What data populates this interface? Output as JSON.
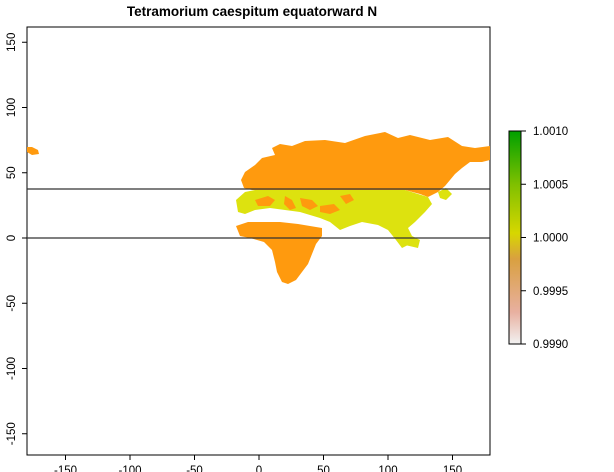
{
  "title": "Tetramorium caespitum equatorward N",
  "axes": {
    "x_ticks": [
      -150,
      -100,
      -50,
      0,
      50,
      100,
      150
    ],
    "y_ticks": [
      150,
      100,
      50,
      0,
      -50,
      -100,
      -150
    ],
    "x_range": [
      -180,
      180
    ],
    "y_range": [
      -165,
      160
    ]
  },
  "reference_lines_lat": [
    37,
    0
  ],
  "legend": {
    "ticks": [
      "1.0010",
      "1.0005",
      "1.0000",
      "0.9995",
      "0.9990"
    ],
    "range": [
      0.999,
      1.001
    ],
    "colors": [
      "#f2f2f2",
      "#e8b0a0",
      "#d9a040",
      "#d7d700",
      "#7fc000",
      "#00a000"
    ]
  },
  "regions": [
    {
      "name": "north-eurasia",
      "value": 0.9996,
      "color": "#ff9a0e"
    },
    {
      "name": "africa",
      "value": 0.9996,
      "color": "#ff9a0e"
    },
    {
      "name": "mid-latitude-band",
      "value": 1.0,
      "color": "#dde20f"
    },
    {
      "name": "alaska-tip",
      "value": 0.9996,
      "color": "#ff9a0e"
    }
  ]
}
